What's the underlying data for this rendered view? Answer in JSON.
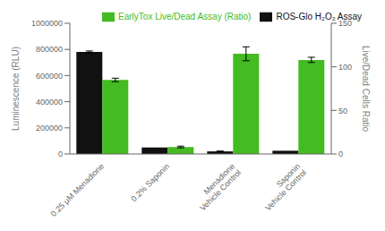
{
  "chart_data": {
    "type": "bar",
    "categories": [
      "0.25 μM Menadione",
      "0.2% Saponin",
      "Menadione\nVehicle Control",
      "Saponin\nVehicle Control"
    ],
    "series": [
      {
        "name": "ROS-Glo H₂O₂ Assay",
        "color": "#111111",
        "values": [
          780000,
          50000,
          20000,
          25000
        ],
        "errors": [
          8000,
          0,
          3000,
          0
        ]
      },
      {
        "name": "EarlyTox Live/Dead Assay (Ratio)",
        "color": "#44bb22",
        "values": [
          85,
          8,
          115,
          108
        ],
        "errors": [
          2,
          1,
          8,
          3
        ],
        "axis": "y2"
      }
    ],
    "ylim": [
      0,
      1000000
    ],
    "yticks": [
      0,
      200000,
      400000,
      600000,
      800000,
      1000000
    ],
    "y2lim": [
      0,
      150
    ],
    "y2ticks": [
      0,
      50,
      100,
      150
    ],
    "ylabel": "Luminescence (RLU)",
    "y2label": "Live/Dead Cells Ratio",
    "grid": false,
    "legend": "upper right"
  }
}
